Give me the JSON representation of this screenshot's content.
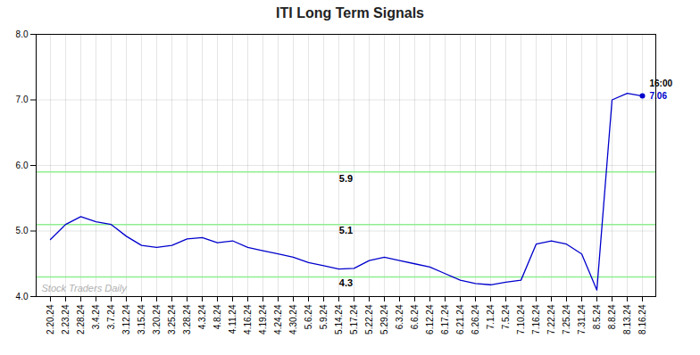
{
  "chart_data": {
    "type": "line",
    "title": "ITI Long Term Signals",
    "categories": [
      "2.20.24",
      "2.23.24",
      "2.28.24",
      "3.4.24",
      "3.7.24",
      "3.12.24",
      "3.15.24",
      "3.20.24",
      "3.25.24",
      "3.28.24",
      "4.3.24",
      "4.8.24",
      "4.11.24",
      "4.16.24",
      "4.19.24",
      "4.24.24",
      "4.30.24",
      "5.6.24",
      "5.9.24",
      "5.14.24",
      "5.17.24",
      "5.22.24",
      "5.29.24",
      "6.3.24",
      "6.6.24",
      "6.12.24",
      "6.17.24",
      "6.21.24",
      "6.26.24",
      "7.1.24",
      "7.5.24",
      "7.10.24",
      "7.16.24",
      "7.22.24",
      "7.25.24",
      "7.31.24",
      "8.5.24",
      "8.8.24",
      "8.13.24",
      "8.16.24"
    ],
    "values": [
      4.87,
      5.1,
      5.22,
      5.14,
      5.1,
      4.92,
      4.78,
      4.75,
      4.78,
      4.88,
      4.9,
      4.82,
      4.85,
      4.75,
      4.7,
      4.65,
      4.6,
      4.52,
      4.47,
      4.42,
      4.43,
      4.55,
      4.6,
      4.55,
      4.5,
      4.45,
      4.35,
      4.25,
      4.2,
      4.18,
      4.22,
      4.25,
      4.8,
      4.85,
      4.8,
      4.65,
      4.1,
      7.0,
      7.1,
      7.06
    ],
    "color": "#0000cd",
    "hlines": [
      {
        "y": 5.9,
        "label": "5.9",
        "color": "#90ee90"
      },
      {
        "y": 5.1,
        "label": "5.1",
        "color": "#90ee90"
      },
      {
        "y": 4.3,
        "label": "4.3",
        "color": "#90ee90"
      }
    ],
    "annotations": [
      {
        "x": "8.16.24",
        "y": 7.06,
        "text": "16:00",
        "color": "#000000"
      },
      {
        "x": "8.16.24",
        "y": 7.06,
        "text": "7.06",
        "color": "#0000cd"
      },
      {
        "text": "Stock Traders Daily"
      }
    ],
    "ylim": [
      4.0,
      8.0
    ],
    "yticks": [
      4,
      5,
      6,
      7,
      8
    ],
    "grid": true
  }
}
